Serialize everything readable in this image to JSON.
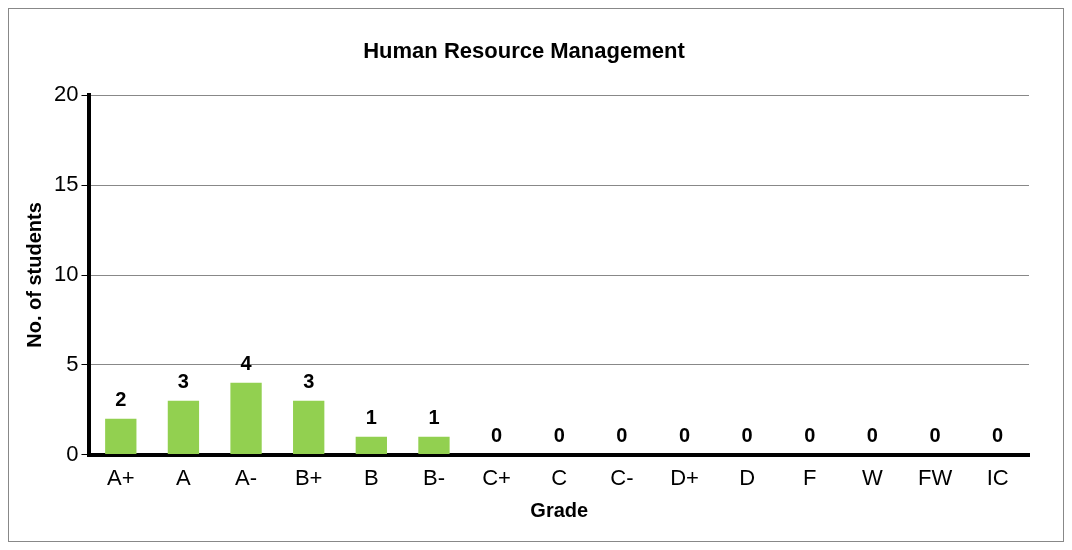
{
  "chart_data": {
    "type": "bar",
    "title": "Human Resource Management",
    "xlabel": "Grade",
    "ylabel": "No. of students",
    "categories": [
      "A+",
      "A",
      "A-",
      "B+",
      "B",
      "B-",
      "C+",
      "C",
      "C-",
      "D+",
      "D",
      "F",
      "W",
      "FW",
      "IC"
    ],
    "values": [
      2,
      3,
      4,
      3,
      1,
      1,
      0,
      0,
      0,
      0,
      0,
      0,
      0,
      0,
      0
    ],
    "color": "#92d050",
    "ylim": [
      0,
      20
    ],
    "yticks": [
      0,
      5,
      10,
      15,
      20
    ],
    "grid": "y",
    "data_labels": true,
    "legend": false
  }
}
